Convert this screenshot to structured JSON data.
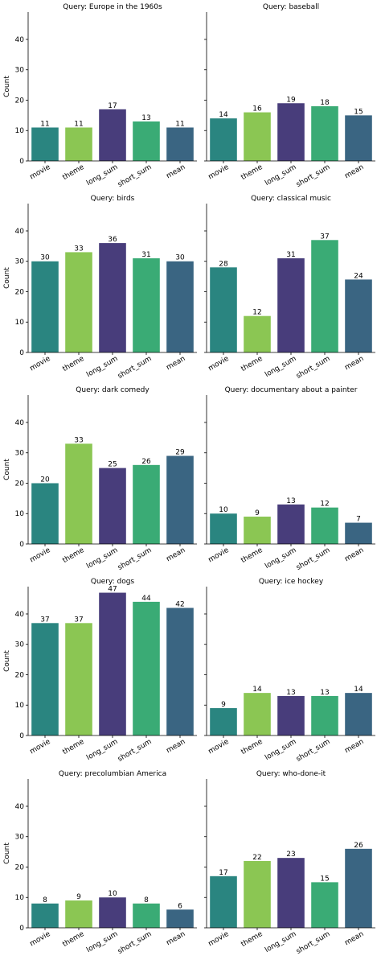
{
  "figure": {
    "ylabel": "Count",
    "categories": [
      "movie",
      "theme",
      "long_sum",
      "short_sum",
      "mean"
    ],
    "colors": {
      "movie": "#2a8580",
      "theme": "#8bc653",
      "long_sum": "#483d7b",
      "short_sum": "#3aab75",
      "mean": "#3a6582"
    }
  },
  "chart_data": [
    {
      "type": "bar",
      "title": "Query: Europe in the 1960s",
      "categories": [
        "movie",
        "theme",
        "long_sum",
        "short_sum",
        "mean"
      ],
      "values": [
        11,
        11,
        17,
        13,
        11
      ],
      "ylim": [
        0,
        49
      ],
      "yticks": [
        0,
        10,
        20,
        30,
        40
      ],
      "ylabel": "Count"
    },
    {
      "type": "bar",
      "title": "Query: baseball",
      "categories": [
        "movie",
        "theme",
        "long_sum",
        "short_sum",
        "mean"
      ],
      "values": [
        14,
        16,
        19,
        18,
        15
      ],
      "ylim": [
        0,
        49
      ],
      "yticks": [
        0,
        10,
        20,
        30,
        40
      ],
      "ylabel": ""
    },
    {
      "type": "bar",
      "title": "Query: birds",
      "categories": [
        "movie",
        "theme",
        "long_sum",
        "short_sum",
        "mean"
      ],
      "values": [
        30,
        33,
        36,
        31,
        30
      ],
      "ylim": [
        0,
        49
      ],
      "yticks": [
        0,
        10,
        20,
        30,
        40
      ],
      "ylabel": "Count"
    },
    {
      "type": "bar",
      "title": "Query: classical music",
      "categories": [
        "movie",
        "theme",
        "long_sum",
        "short_sum",
        "mean"
      ],
      "values": [
        28,
        12,
        31,
        37,
        24
      ],
      "ylim": [
        0,
        49
      ],
      "yticks": [
        0,
        10,
        20,
        30,
        40
      ],
      "ylabel": ""
    },
    {
      "type": "bar",
      "title": "Query: dark comedy",
      "categories": [
        "movie",
        "theme",
        "long_sum",
        "short_sum",
        "mean"
      ],
      "values": [
        20,
        33,
        25,
        26,
        29
      ],
      "ylim": [
        0,
        49
      ],
      "yticks": [
        0,
        10,
        20,
        30,
        40
      ],
      "ylabel": "Count"
    },
    {
      "type": "bar",
      "title": "Query: documentary about a painter",
      "categories": [
        "movie",
        "theme",
        "long_sum",
        "short_sum",
        "mean"
      ],
      "values": [
        10,
        9,
        13,
        12,
        7
      ],
      "ylim": [
        0,
        49
      ],
      "yticks": [
        0,
        10,
        20,
        30,
        40
      ],
      "ylabel": ""
    },
    {
      "type": "bar",
      "title": "Query: dogs",
      "categories": [
        "movie",
        "theme",
        "long_sum",
        "short_sum",
        "mean"
      ],
      "values": [
        37,
        37,
        47,
        44,
        42
      ],
      "ylim": [
        0,
        49
      ],
      "yticks": [
        0,
        10,
        20,
        30,
        40
      ],
      "ylabel": "Count"
    },
    {
      "type": "bar",
      "title": "Query: ice hockey",
      "categories": [
        "movie",
        "theme",
        "long_sum",
        "short_sum",
        "mean"
      ],
      "values": [
        9,
        14,
        13,
        13,
        14
      ],
      "ylim": [
        0,
        49
      ],
      "yticks": [
        0,
        10,
        20,
        30,
        40
      ],
      "ylabel": ""
    },
    {
      "type": "bar",
      "title": "Query: precolumbian America",
      "categories": [
        "movie",
        "theme",
        "long_sum",
        "short_sum",
        "mean"
      ],
      "values": [
        8,
        9,
        10,
        8,
        6
      ],
      "ylim": [
        0,
        49
      ],
      "yticks": [
        0,
        10,
        20,
        30,
        40
      ],
      "ylabel": "Count"
    },
    {
      "type": "bar",
      "title": "Query: who-done-it",
      "categories": [
        "movie",
        "theme",
        "long_sum",
        "short_sum",
        "mean"
      ],
      "values": [
        17,
        22,
        23,
        15,
        26
      ],
      "ylim": [
        0,
        49
      ],
      "yticks": [
        0,
        10,
        20,
        30,
        40
      ],
      "ylabel": ""
    }
  ]
}
